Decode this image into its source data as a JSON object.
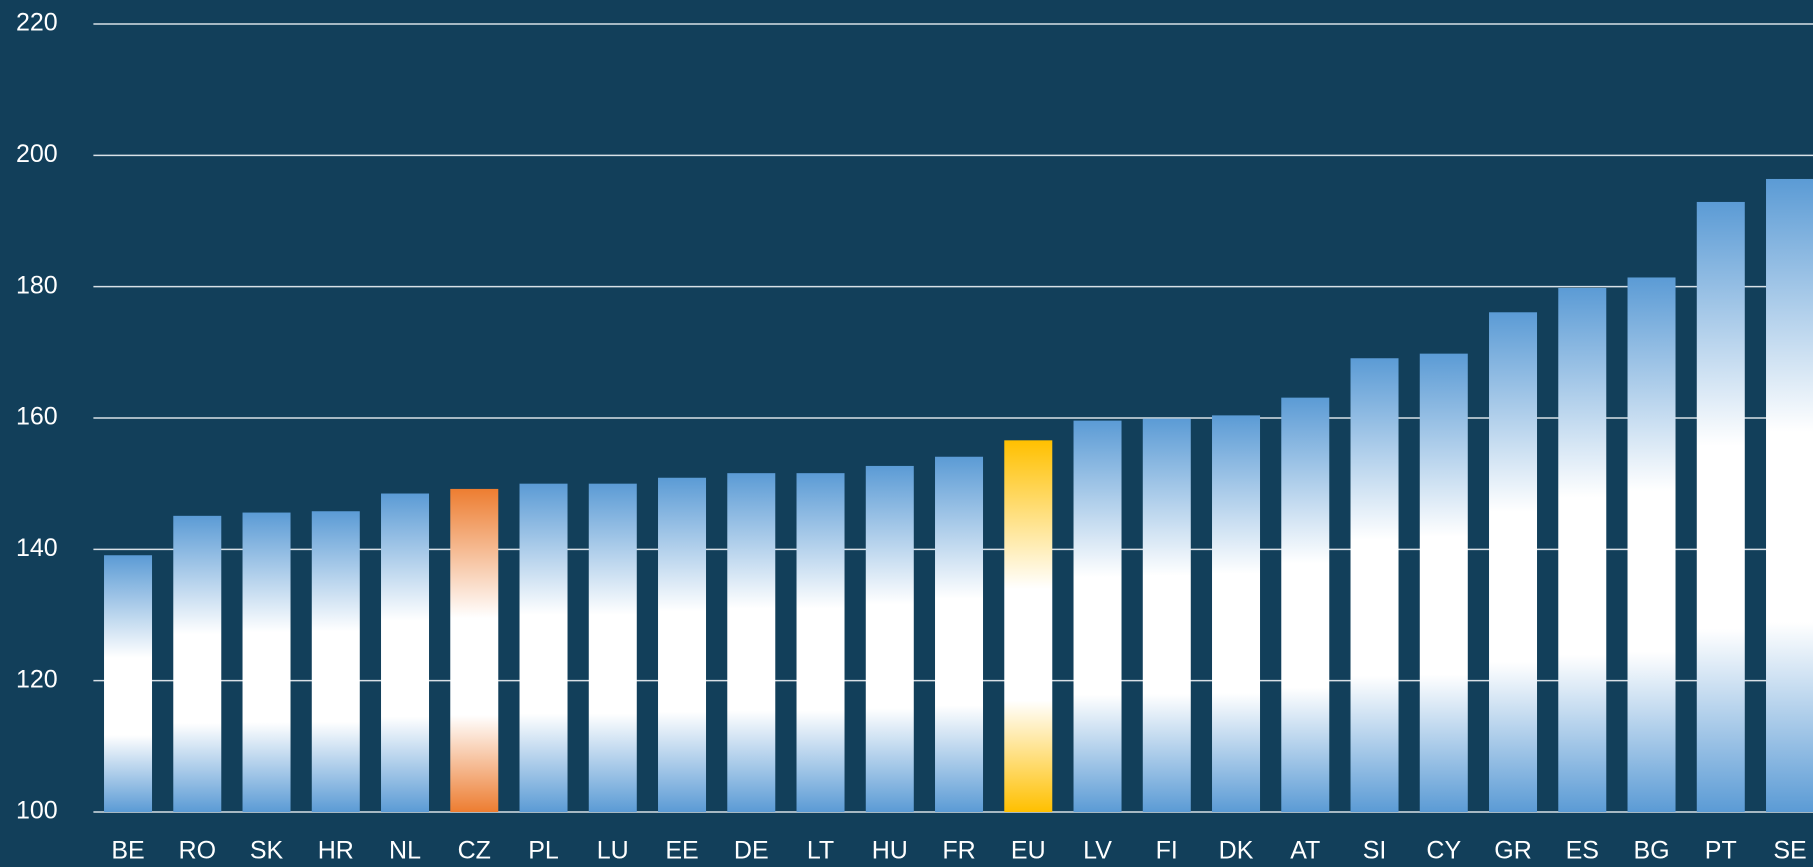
{
  "chart_data": {
    "type": "bar",
    "categories": [
      "BE",
      "RO",
      "SK",
      "HR",
      "NL",
      "CZ",
      "PL",
      "LU",
      "EE",
      "DE",
      "LT",
      "HU",
      "FR",
      "EU",
      "LV",
      "FI",
      "DK",
      "AT",
      "SI",
      "CY",
      "GR",
      "ES",
      "BG",
      "PT",
      "SE"
    ],
    "values": [
      139.1,
      145.1,
      145.6,
      145.8,
      148.5,
      149.2,
      150.0,
      150.0,
      150.9,
      151.6,
      151.6,
      152.7,
      154.1,
      156.6,
      159.6,
      159.9,
      160.4,
      163.1,
      169.1,
      169.8,
      176.1,
      179.8,
      181.4,
      192.9,
      196.4
    ],
    "colors": [
      "#5b9bd5",
      "#5b9bd5",
      "#5b9bd5",
      "#5b9bd5",
      "#5b9bd5",
      "#ed7d31",
      "#5b9bd5",
      "#5b9bd5",
      "#5b9bd5",
      "#5b9bd5",
      "#5b9bd5",
      "#5b9bd5",
      "#5b9bd5",
      "#ffc000",
      "#5b9bd5",
      "#5b9bd5",
      "#5b9bd5",
      "#5b9bd5",
      "#5b9bd5",
      "#5b9bd5",
      "#5b9bd5",
      "#5b9bd5",
      "#5b9bd5",
      "#5b9bd5",
      "#5b9bd5"
    ],
    "ylim": [
      100,
      220
    ],
    "yticks": [
      100,
      120,
      140,
      160,
      180,
      200,
      220
    ],
    "grid": true
  }
}
